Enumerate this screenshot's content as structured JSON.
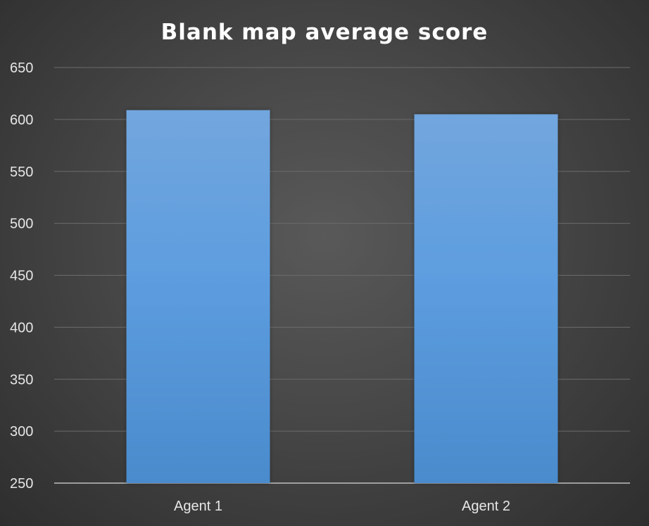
{
  "chart_data": {
    "type": "bar",
    "title": "Blank map average score",
    "categories": [
      "Agent 1",
      "Agent 2"
    ],
    "values": [
      609,
      605
    ],
    "ylim": [
      250,
      650
    ],
    "yticks": [
      250,
      300,
      350,
      400,
      450,
      500,
      550,
      600,
      650
    ],
    "xlabel": "",
    "ylabel": "",
    "grid": "horizontal",
    "legend": "none"
  },
  "colors": {
    "bar_top": "#72a6de",
    "bar_bottom": "#4a8bcc",
    "background": "#474747"
  }
}
